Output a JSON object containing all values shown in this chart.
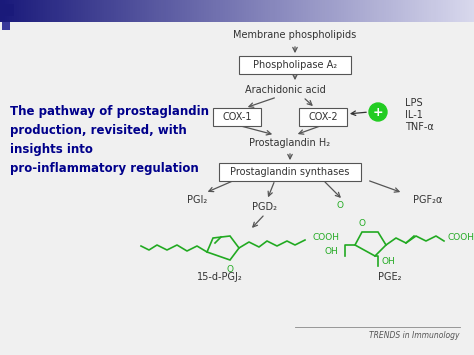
{
  "bg_color": "#f0f0f0",
  "title_text": "The pathway of prostaglandin\nproduction, revisited, with\ninsights into\npro-inflammatory regulation",
  "title_color": "#00008B",
  "title_fontsize": 8.5,
  "trends_text": "TRENDS in Immunology",
  "diagram": {
    "membrane_text": "Membrane phospholipids",
    "phospholipase_box": "Phospholipase A₂",
    "arachidonic_text": "Arachidonic acid",
    "cox1_box": "COX-1",
    "cox2_box": "COX-2",
    "prostaglandin_h2_text": "Prostaglandin H₂",
    "synthases_box": "Prostaglandin synthases",
    "pgi2_text": "PGI₂",
    "pgd2_text": "PGD₂",
    "pgf2a_text": "PGF₂α",
    "pge2_text": "PGE₂",
    "pgj2_text": "15-d-PGJ₂",
    "lps_text": "LPS",
    "il1_text": "IL-1",
    "tnf_text": "TNF-α",
    "plus_color": "#22cc22",
    "green_color": "#22aa22",
    "text_color": "#333333",
    "header_left_color": "#1a1a7a",
    "header_right_color": "#d8d8ee"
  }
}
